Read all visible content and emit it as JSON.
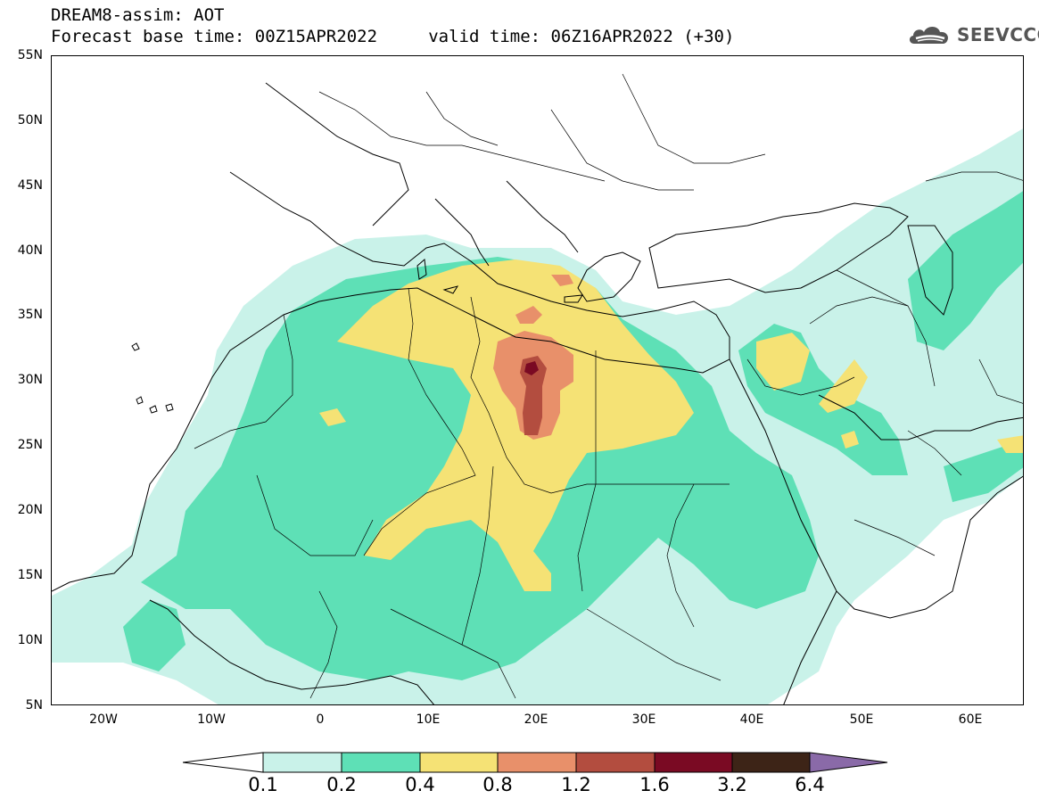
{
  "title": {
    "line1": "DREAM8-assim: AOT",
    "line2": "Forecast base time: 00Z15APR2022     valid time: 06Z16APR2022 (+30)"
  },
  "logo": {
    "text": "SEEVCCC",
    "icon": "cloud-icon"
  },
  "map": {
    "lat_labels": [
      "55N",
      "50N",
      "45N",
      "40N",
      "35N",
      "30N",
      "25N",
      "20N",
      "15N",
      "10N",
      "5N"
    ],
    "lon_labels": [
      "20W",
      "10W",
      "0",
      "10E",
      "20E",
      "30E",
      "40E",
      "50E",
      "60E"
    ]
  },
  "colorbar": {
    "labels": [
      "0.1",
      "0.2",
      "0.4",
      "0.8",
      "1.2",
      "1.6",
      "3.2",
      "6.4"
    ],
    "colors": [
      "#c9f2e9",
      "#5ee0b6",
      "#f5e275",
      "#e8906a",
      "#b34d3f",
      "#7a0a23",
      "#3d2417",
      "#8a6aa8"
    ]
  }
}
